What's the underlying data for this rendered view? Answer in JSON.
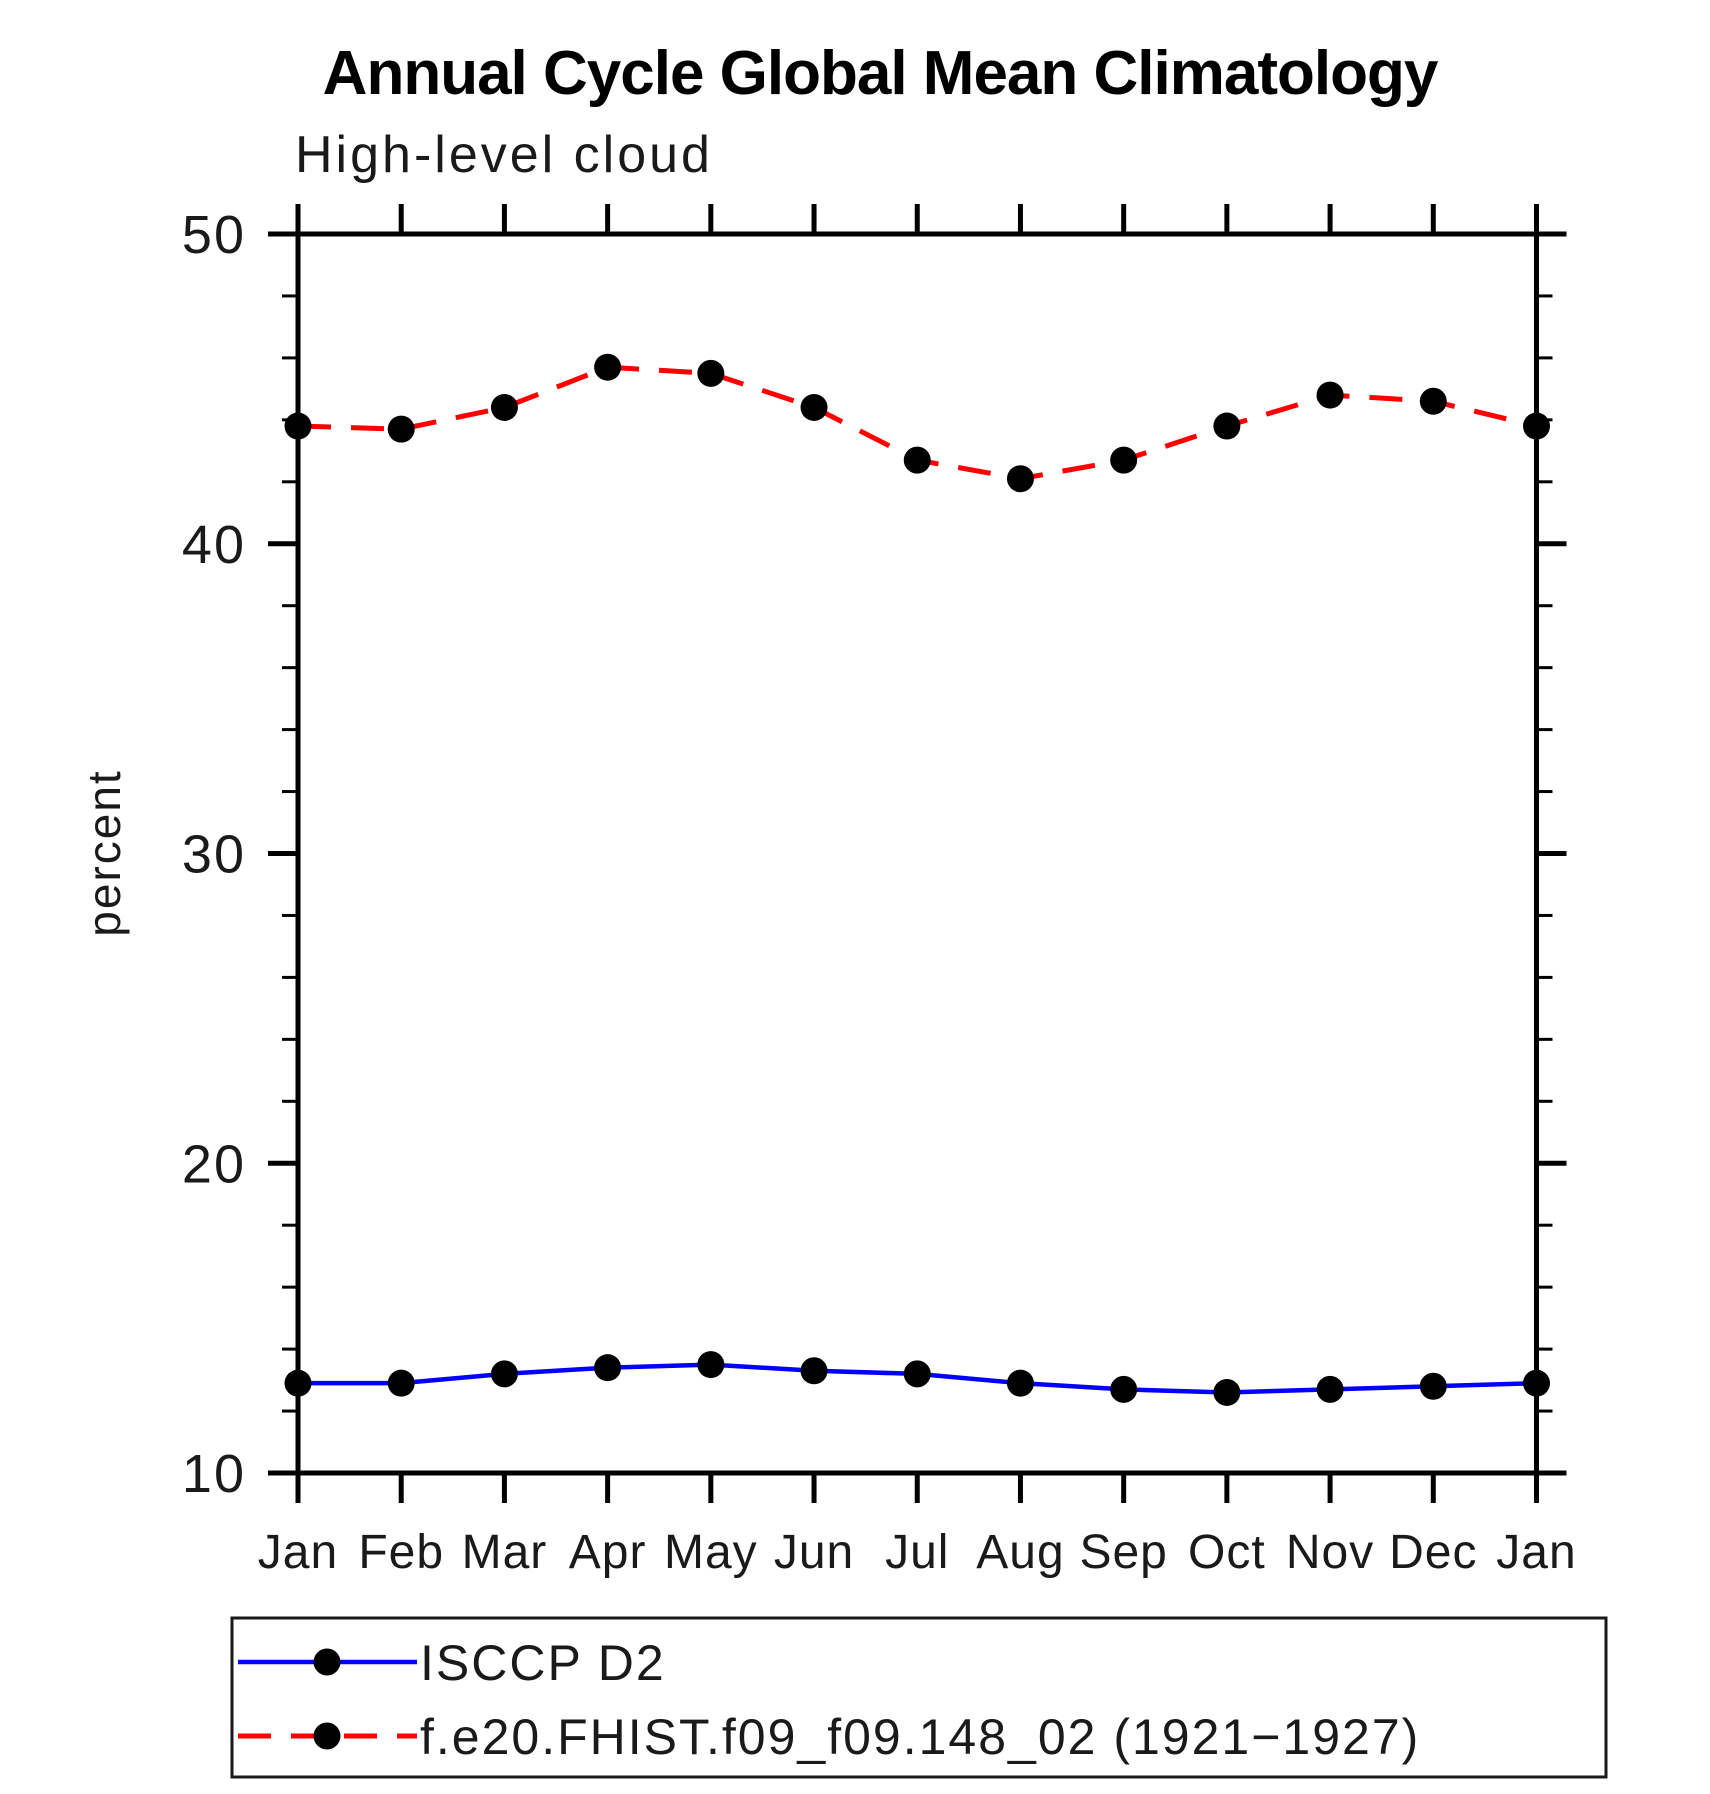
{
  "chart_data": {
    "type": "line",
    "title": "Annual Cycle Global Mean Climatology",
    "subtitle": "High-level cloud",
    "xlabel": "",
    "ylabel": "percent",
    "categories": [
      "Jan",
      "Feb",
      "Mar",
      "Apr",
      "May",
      "Jun",
      "Jul",
      "Aug",
      "Sep",
      "Oct",
      "Nov",
      "Dec",
      "Jan"
    ],
    "ylim": [
      10,
      50
    ],
    "yticks_major": [
      10,
      20,
      30,
      40,
      50
    ],
    "ytick_minor_step": 2,
    "grid": false,
    "legend_position": "bottom",
    "marker": "circle",
    "marker_color": "#000000",
    "series": [
      {
        "name": "ISCCP D2",
        "color": "#0000ff",
        "style": "solid",
        "values": [
          12.9,
          12.9,
          13.2,
          13.4,
          13.5,
          13.3,
          13.2,
          12.9,
          12.7,
          12.6,
          12.7,
          12.8,
          12.9
        ]
      },
      {
        "name": "f.e20.FHIST.f09_f09.148_02 (1921−1927)",
        "color": "#ff0000",
        "style": "dashed",
        "values": [
          43.8,
          43.7,
          44.4,
          45.7,
          45.5,
          44.4,
          42.7,
          42.1,
          42.7,
          43.8,
          44.8,
          44.6,
          43.8
        ]
      }
    ]
  }
}
